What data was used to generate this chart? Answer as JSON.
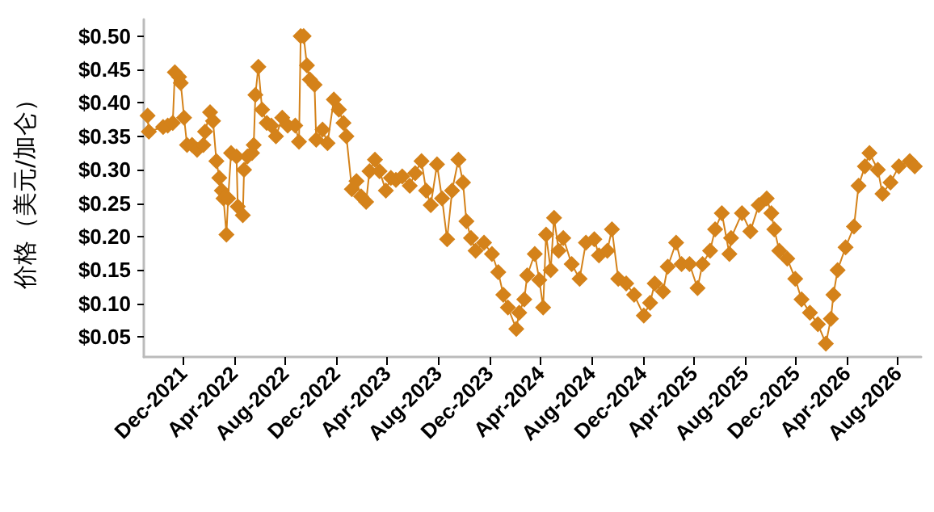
{
  "chart_data": {
    "type": "line",
    "ylabel": "价格（美元/加仑）",
    "x": [
      "2021-09-07",
      "2021-09-10",
      "2021-10-14",
      "2021-10-25",
      "2021-11-06",
      "2021-11-11",
      "2021-11-21",
      "2021-11-25",
      "2021-12-03",
      "2021-12-10",
      "2021-12-22",
      "2022-01-03",
      "2022-01-18",
      "2022-01-22",
      "2022-02-03",
      "2022-02-10",
      "2022-02-18",
      "2022-02-25",
      "2022-03-03",
      "2022-03-07",
      "2022-03-14",
      "2022-03-18",
      "2022-03-25",
      "2022-04-07",
      "2022-04-10",
      "2022-04-22",
      "2022-04-25",
      "2022-05-03",
      "2022-05-14",
      "2022-05-18",
      "2022-05-22",
      "2022-05-29",
      "2022-06-07",
      "2022-06-18",
      "2022-06-29",
      "2022-07-10",
      "2022-07-25",
      "2022-08-07",
      "2022-08-25",
      "2022-09-03",
      "2022-09-07",
      "2022-09-14",
      "2022-09-22",
      "2022-09-29",
      "2022-10-10",
      "2022-10-14",
      "2022-10-29",
      "2022-11-10",
      "2022-11-25",
      "2022-12-07",
      "2022-12-18",
      "2022-12-25",
      "2023-01-07",
      "2023-01-18",
      "2023-01-29",
      "2023-02-10",
      "2023-02-18",
      "2023-03-03",
      "2023-03-14",
      "2023-03-29",
      "2023-04-10",
      "2023-04-22",
      "2023-05-07",
      "2023-05-25",
      "2023-06-07",
      "2023-06-22",
      "2023-07-03",
      "2023-07-14",
      "2023-07-29",
      "2023-08-10",
      "2023-08-22",
      "2023-09-03",
      "2023-09-18",
      "2023-09-29",
      "2023-10-07",
      "2023-10-18",
      "2023-10-29",
      "2023-11-18",
      "2023-12-07",
      "2023-12-22",
      "2024-01-03",
      "2024-01-14",
      "2024-02-03",
      "2024-02-10",
      "2024-02-22",
      "2024-02-29",
      "2024-03-18",
      "2024-03-29",
      "2024-04-07",
      "2024-04-14",
      "2024-04-25",
      "2024-05-03",
      "2024-05-14",
      "2024-05-25",
      "2024-06-14",
      "2024-07-03",
      "2024-07-18",
      "2024-08-07",
      "2024-08-18",
      "2024-09-07",
      "2024-09-18",
      "2024-10-03",
      "2024-10-22",
      "2024-11-10",
      "2024-12-03",
      "2024-12-18",
      "2024-12-29",
      "2025-01-18",
      "2025-01-29",
      "2025-02-18",
      "2025-03-03",
      "2025-03-22",
      "2025-04-10",
      "2025-04-22",
      "2025-05-10",
      "2025-05-22",
      "2025-06-07",
      "2025-06-25",
      "2025-06-29",
      "2025-07-25",
      "2025-08-14",
      "2025-09-03",
      "2025-09-22",
      "2025-10-03",
      "2025-10-10",
      "2025-10-22",
      "2025-11-10",
      "2025-11-29",
      "2025-12-14",
      "2026-01-03",
      "2026-01-22",
      "2026-02-10",
      "2026-02-22",
      "2026-02-28",
      "2026-03-10",
      "2026-03-29",
      "2026-04-18",
      "2026-04-29",
      "2026-05-14",
      "2026-05-25",
      "2026-06-14",
      "2026-06-25",
      "2026-07-14",
      "2026-08-03",
      "2026-08-29",
      "2026-09-10"
    ],
    "series": [
      {
        "color": "#d4821a",
        "values": [
          0.381,
          0.357,
          0.364,
          0.366,
          0.37,
          0.446,
          0.439,
          0.43,
          0.378,
          0.337,
          0.337,
          0.33,
          0.337,
          0.357,
          0.386,
          0.373,
          0.313,
          0.288,
          0.269,
          0.257,
          0.203,
          0.257,
          0.325,
          0.32,
          0.245,
          0.232,
          0.3,
          0.32,
          0.325,
          0.337,
          0.412,
          0.454,
          0.39,
          0.37,
          0.366,
          0.35,
          0.378,
          0.366,
          0.366,
          0.342,
          0.5,
          0.5,
          0.456,
          0.435,
          0.427,
          0.345,
          0.36,
          0.34,
          0.405,
          0.39,
          0.37,
          0.35,
          0.271,
          0.283,
          0.26,
          0.252,
          0.298,
          0.315,
          0.298,
          0.269,
          0.288,
          0.285,
          0.29,
          0.276,
          0.295,
          0.313,
          0.269,
          0.247,
          0.308,
          0.257,
          0.196,
          0.269,
          0.315,
          0.281,
          0.223,
          0.198,
          0.179,
          0.191,
          0.174,
          0.147,
          0.113,
          0.094,
          0.062,
          0.086,
          0.106,
          0.142,
          0.174,
          0.135,
          0.094,
          0.203,
          0.15,
          0.228,
          0.179,
          0.198,
          0.159,
          0.137,
          0.191,
          0.196,
          0.172,
          0.179,
          0.211,
          0.137,
          0.13,
          0.113,
          0.082,
          0.101,
          0.13,
          0.118,
          0.155,
          0.191,
          0.159,
          0.159,
          0.123,
          0.159,
          0.179,
          0.211,
          0.235,
          0.174,
          0.198,
          0.235,
          0.208,
          0.247,
          0.257,
          0.235,
          0.211,
          0.179,
          0.167,
          0.137,
          0.106,
          0.086,
          0.069,
          0.04,
          0.077,
          0.113,
          0.15,
          0.184,
          0.215,
          0.276,
          0.305,
          0.325,
          0.3,
          0.264,
          0.281,
          0.305,
          0.313,
          0.305
        ]
      }
    ],
    "xlim": [
      "2021-08-29",
      "2026-09-25"
    ],
    "xticks": [
      {
        "value": "2021-12-01",
        "label": "Dec-2021"
      },
      {
        "value": "2022-04-01",
        "label": "Apr-2022"
      },
      {
        "value": "2022-08-01",
        "label": "Aug-2022"
      },
      {
        "value": "2022-12-01",
        "label": "Dec-2022"
      },
      {
        "value": "2023-04-01",
        "label": "Apr-2023"
      },
      {
        "value": "2023-08-01",
        "label": "Aug-2023"
      },
      {
        "value": "2023-12-01",
        "label": "Dec-2023"
      },
      {
        "value": "2024-04-01",
        "label": "Apr-2024"
      },
      {
        "value": "2024-08-01",
        "label": "Aug-2024"
      },
      {
        "value": "2024-12-01",
        "label": "Dec-2024"
      },
      {
        "value": "2025-04-01",
        "label": "Apr-2025"
      },
      {
        "value": "2025-08-01",
        "label": "Aug-2025"
      },
      {
        "value": "2025-12-01",
        "label": "Dec-2025"
      },
      {
        "value": "2026-04-01",
        "label": "Apr-2026"
      },
      {
        "value": "2026-08-01",
        "label": "Aug-2026"
      }
    ],
    "ylim": [
      0.02,
      0.525
    ],
    "yticks": [
      {
        "value": 0.05,
        "label": "$0.05"
      },
      {
        "value": 0.1,
        "label": "$0.10"
      },
      {
        "value": 0.15,
        "label": "$0.15"
      },
      {
        "value": 0.2,
        "label": "$0.20"
      },
      {
        "value": 0.25,
        "label": "$0.25"
      },
      {
        "value": 0.3,
        "label": "$0.30"
      },
      {
        "value": 0.35,
        "label": "$0.35"
      },
      {
        "value": 0.4,
        "label": "$0.40"
      },
      {
        "value": 0.45,
        "label": "$0.45"
      },
      {
        "value": 0.5,
        "label": "$0.50"
      }
    ],
    "grid": false,
    "marker": "diamond",
    "line_style": "solid"
  }
}
